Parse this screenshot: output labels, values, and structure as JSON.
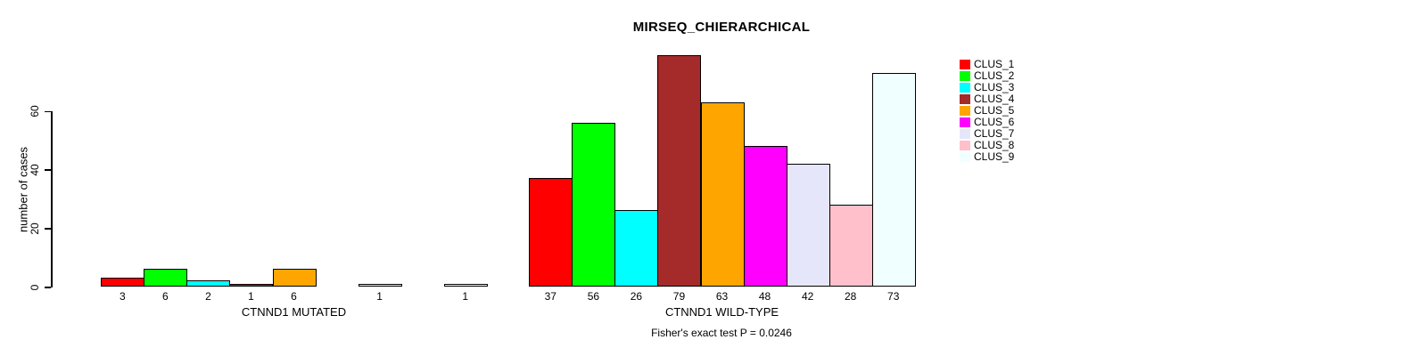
{
  "title": "MIRSEQ_CHIERARCHICAL",
  "footer": "Fisher's exact test P = 0.0246",
  "chart_data": {
    "type": "bar",
    "title": "MIRSEQ_CHIERARCHICAL",
    "ylabel": "number of cases",
    "xlabel": "",
    "yticks": [
      0,
      20,
      40,
      60
    ],
    "ylim": [
      0,
      79
    ],
    "grid": false,
    "legend_position": "right",
    "clusters": [
      "CLUS_1",
      "CLUS_2",
      "CLUS_3",
      "CLUS_4",
      "CLUS_5",
      "CLUS_6",
      "CLUS_7",
      "CLUS_8",
      "CLUS_9"
    ],
    "colors": [
      "#FF0000",
      "#00FF00",
      "#00FFFF",
      "#A52A2A",
      "#FFA500",
      "#FF00FF",
      "#E6E6FA",
      "#FFC0CB",
      "#F0FFFF"
    ],
    "groups": [
      {
        "label": "CTNND1 MUTATED",
        "values": [
          3,
          6,
          2,
          1,
          6,
          0,
          1,
          0,
          1
        ]
      },
      {
        "label": "CTNND1 WILD-TYPE",
        "values": [
          37,
          56,
          26,
          79,
          63,
          48,
          42,
          28,
          73
        ]
      }
    ],
    "annotation": "Fisher's exact test P = 0.0246"
  }
}
